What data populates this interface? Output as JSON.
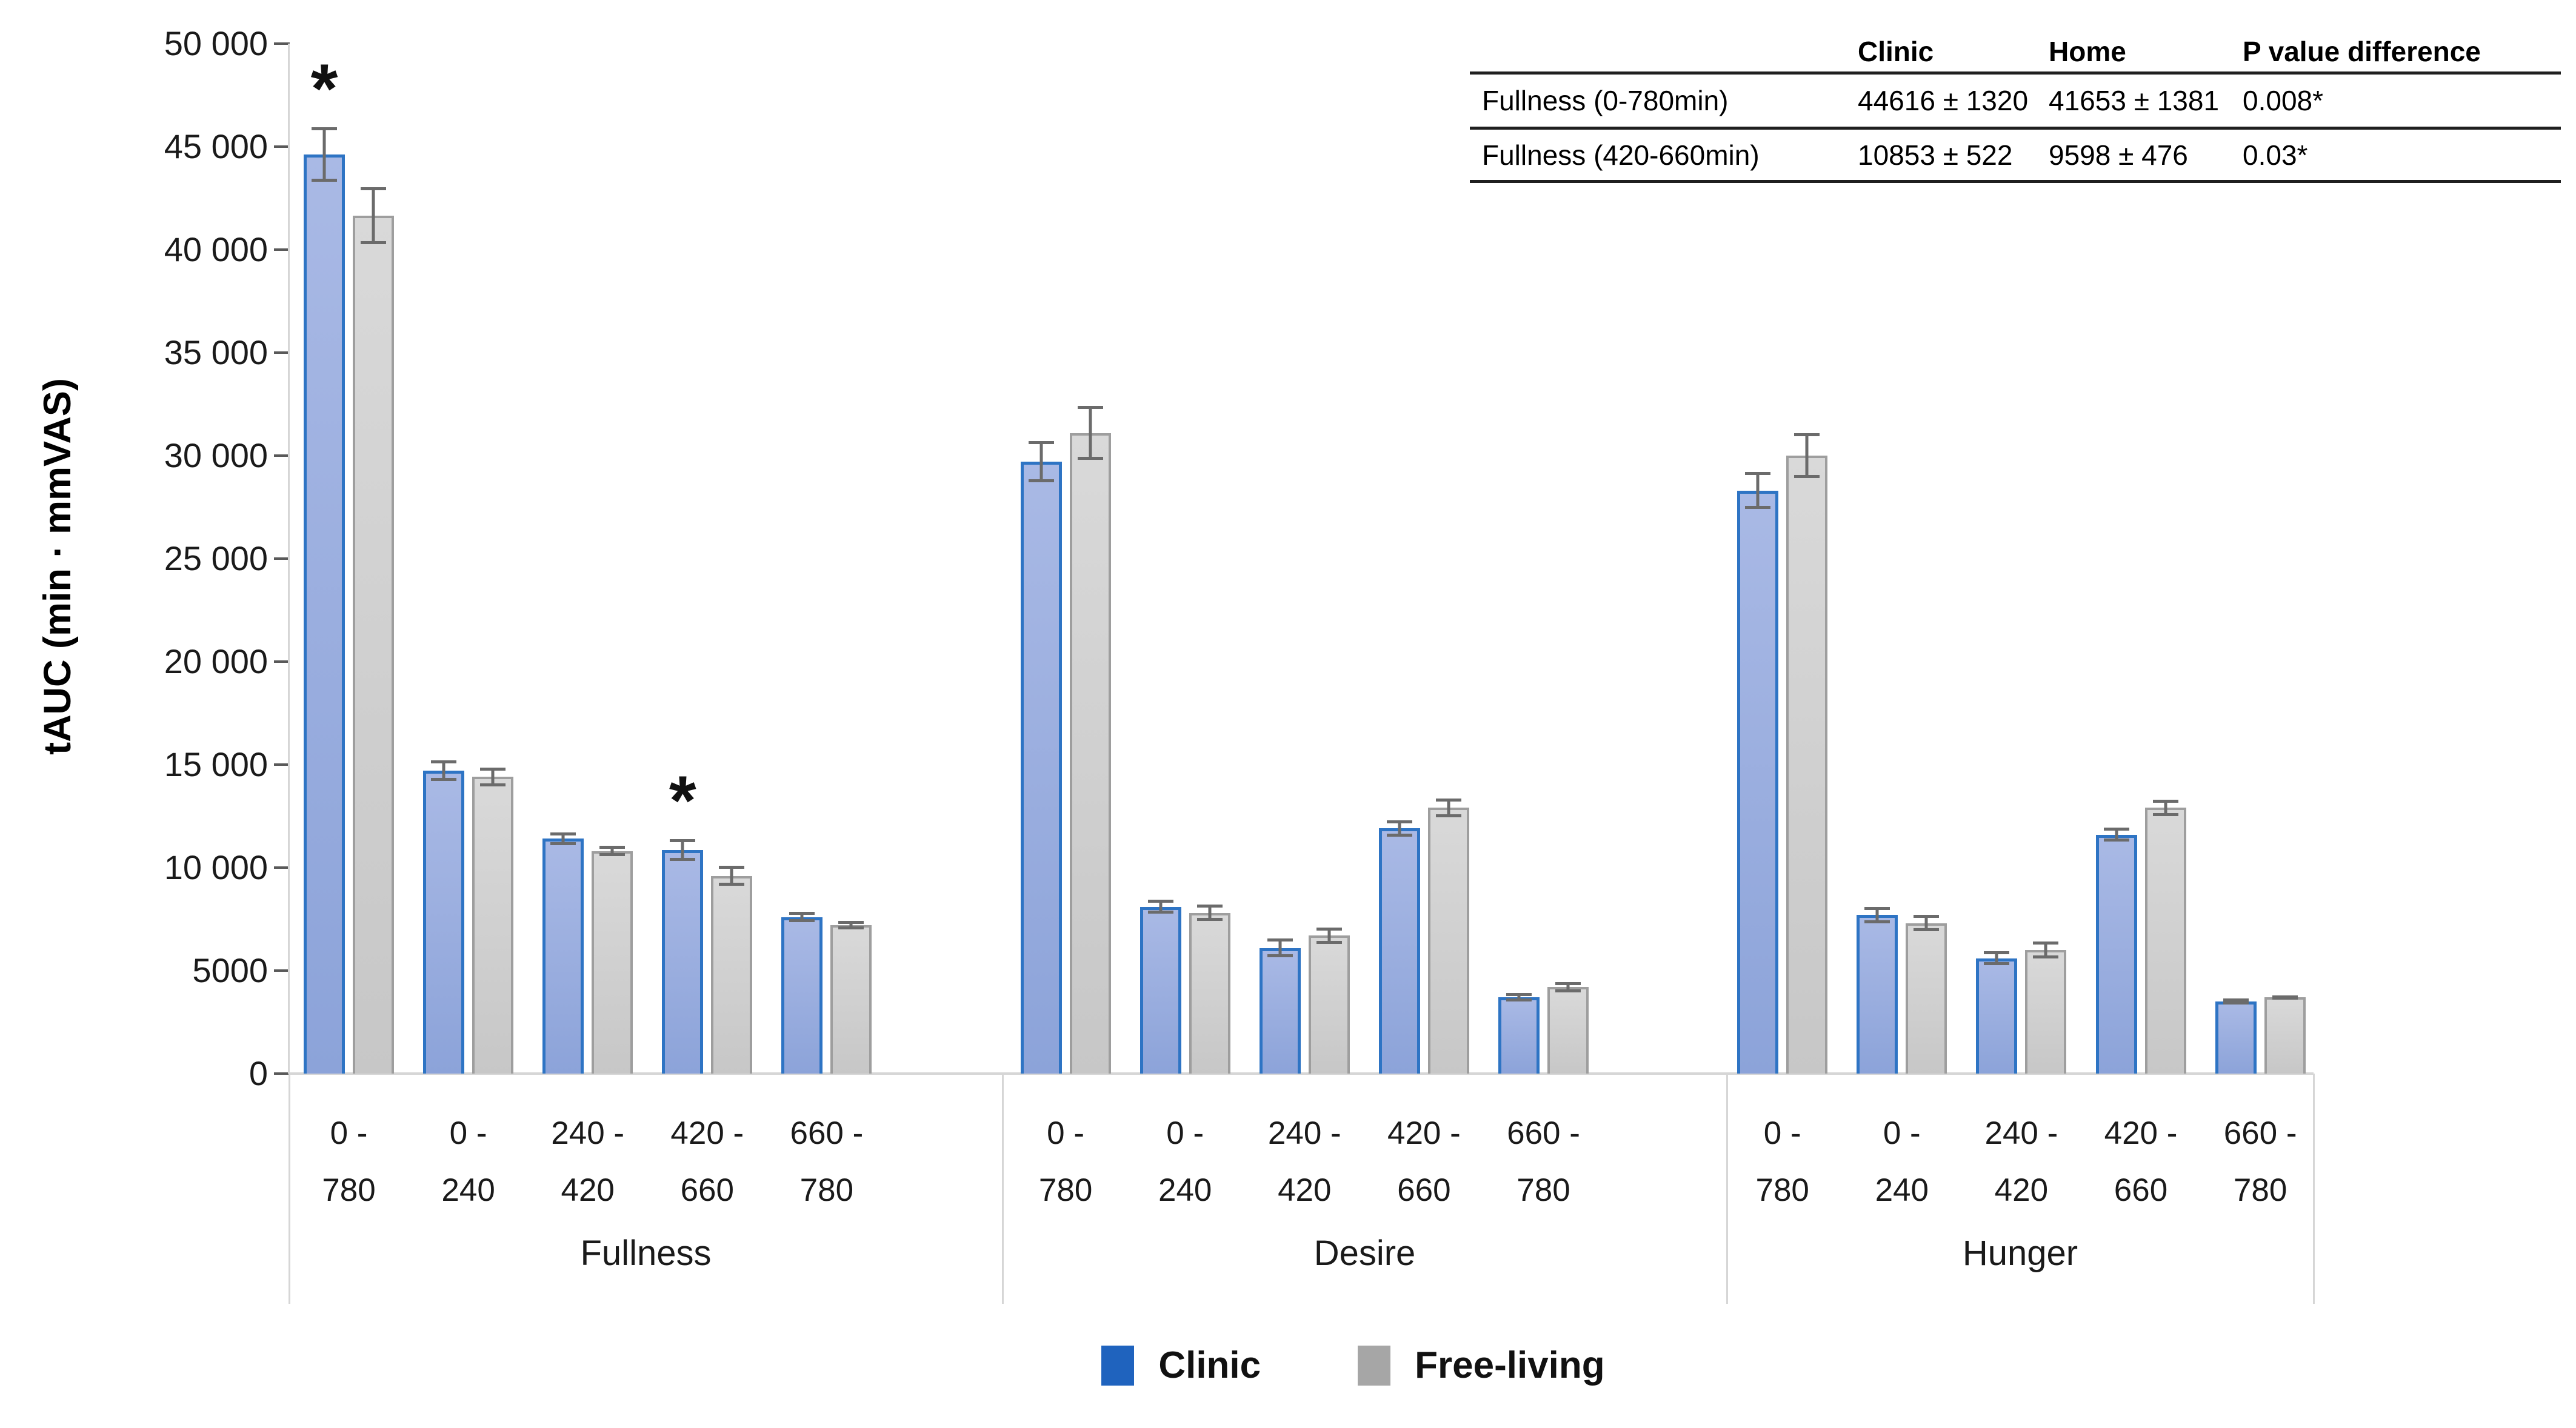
{
  "chart_data": {
    "type": "bar",
    "title": "",
    "ylabel": "tAUC (min · mmVAS)",
    "xlabel": "",
    "ylim": [
      0,
      50000
    ],
    "grid": false,
    "legend_position": "bottom",
    "yticks": [
      {
        "value": 0,
        "label": "0"
      },
      {
        "value": 5000,
        "label": "5000"
      },
      {
        "value": 10000,
        "label": "10 000"
      },
      {
        "value": 15000,
        "label": "15 000"
      },
      {
        "value": 20000,
        "label": "20 000"
      },
      {
        "value": 25000,
        "label": "25 000"
      },
      {
        "value": 30000,
        "label": "30 000"
      },
      {
        "value": 35000,
        "label": "35 000"
      },
      {
        "value": 40000,
        "label": "40 000"
      },
      {
        "value": 45000,
        "label": "45 000"
      },
      {
        "value": 50000,
        "label": "50 000"
      }
    ],
    "groups": [
      "Fullness",
      "Desire",
      "Hunger"
    ],
    "categories": [
      {
        "label": "0 - 780",
        "lines": [
          "0 -",
          "780"
        ]
      },
      {
        "label": "0 - 240",
        "lines": [
          "0 -",
          "240"
        ]
      },
      {
        "label": "240 - 420",
        "lines": [
          "240 -",
          "420"
        ]
      },
      {
        "label": "420 - 660",
        "lines": [
          "420 -",
          "660"
        ]
      },
      {
        "label": "660 - 780",
        "lines": [
          "660 -",
          "780"
        ]
      }
    ],
    "series": [
      {
        "name": "Clinic",
        "legend_color": "#1f63be",
        "fill_top": "#a9b9e5",
        "fill_bottom": "#8ca3d9",
        "border_color": "#2e74c4",
        "values": [
          [
            44616,
            14700,
            11400,
            10853,
            7600
          ],
          [
            29700,
            8100,
            6100,
            11900,
            3700
          ],
          [
            28300,
            7700,
            5600,
            11600,
            3500
          ]
        ],
        "errors": [
          [
            1320,
            500,
            300,
            522,
            250
          ],
          [
            1000,
            350,
            450,
            400,
            200
          ],
          [
            900,
            400,
            350,
            350,
            150
          ]
        ]
      },
      {
        "name": "Free-living",
        "legend_color": "#a6a6a6",
        "fill_top": "#d9d9d9",
        "fill_bottom": "#c7c7c7",
        "border_color": "#9e9e9e",
        "values": [
          [
            41653,
            14400,
            10800,
            9598,
            7200
          ],
          [
            31100,
            7800,
            6700,
            12900,
            4200
          ],
          [
            30000,
            7300,
            6000,
            12900,
            3700
          ]
        ],
        "errors": [
          [
            1381,
            450,
            250,
            476,
            200
          ],
          [
            1300,
            400,
            400,
            450,
            250
          ],
          [
            1100,
            400,
            400,
            400,
            100
          ]
        ]
      }
    ],
    "significance_marker": "*",
    "significance": [
      {
        "group": "Fullness",
        "category": "0 - 780",
        "series": "Clinic"
      },
      {
        "group": "Fullness",
        "category": "420 - 660",
        "series": "Clinic"
      }
    ]
  },
  "inset_table": {
    "headers": [
      "",
      "Clinic",
      "Home",
      "P value difference"
    ],
    "rows": [
      [
        "Fullness (0-780min)",
        "44616 ± 1320",
        "41653 ± 1381",
        "0.008*"
      ],
      [
        "Fullness (420-660min)",
        "10853 ± 522",
        "9598 ± 476",
        "0.03*"
      ]
    ]
  },
  "colors": {
    "axis_line": "#d6d6d6",
    "tick_mark": "#595959",
    "error_bar": "#6b6b6b",
    "background": "#ffffff"
  }
}
